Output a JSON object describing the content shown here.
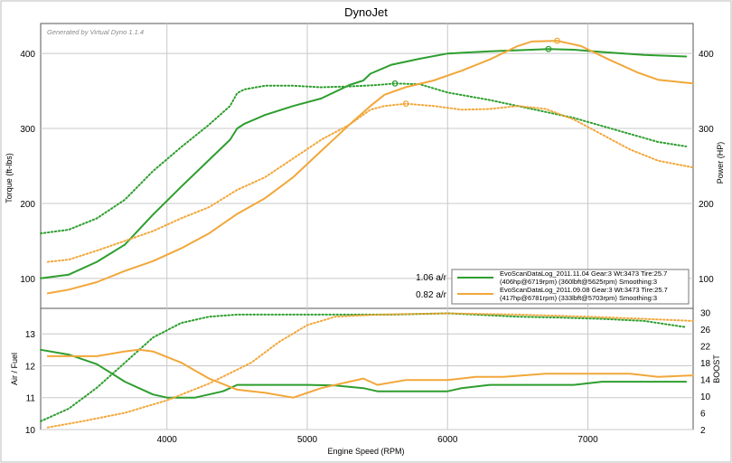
{
  "window": {
    "title": "DynoJet",
    "generated_by": "Generated by Virtual Dyno 1.1.4"
  },
  "colors": {
    "green": "#2e9e2e",
    "orange": "#f2a73a",
    "grid": "#c8c8c8",
    "frame": "#555555"
  },
  "chart_data": [
    {
      "type": "line",
      "title": "DynoJet",
      "xlabel": "Engine Speed (RPM)",
      "ylabel": "Torque (ft-lbs)",
      "y2label": "Power (HP)",
      "xlim": [
        3100,
        7750
      ],
      "ylim": [
        60,
        440
      ],
      "y2lim": [
        60,
        440
      ],
      "yticks": [
        100,
        200,
        300,
        400
      ],
      "y2ticks": [
        100,
        200,
        300,
        400
      ],
      "grid": true,
      "legend": {
        "placement": "bottom-right",
        "afr_labels": [
          "1.06 a/r",
          "0.82 a/r"
        ],
        "entries": [
          {
            "line1": "EvoScanDataLog_2011.11.04 Gear:3 Wt:3473 Tire:25.7",
            "line2": "(406hp@6719rpm) (360lbft@5625rpm) Smoothing:3",
            "color": "#2e9e2e"
          },
          {
            "line1": "EvoScanDataLog_2011.09.08 Gear:3 Wt:3473 Tire:25.7",
            "line2": "(417hp@6781rpm) (333lbft@5703rpm) Smoothing:3",
            "color": "#f2a73a"
          }
        ]
      },
      "series": [
        {
          "name": "EvoScanDataLog_2011.11.04 power",
          "color": "#2e9e2e",
          "style": "solid",
          "axis": "y2",
          "x": [
            3100,
            3300,
            3500,
            3700,
            3900,
            4100,
            4300,
            4450,
            4500,
            4550,
            4700,
            4900,
            5100,
            5300,
            5400,
            5450,
            5600,
            5800,
            6000,
            6300,
            6600,
            6719,
            6900,
            7100,
            7400,
            7700
          ],
          "y": [
            100,
            105,
            122,
            145,
            185,
            222,
            258,
            285,
            300,
            306,
            318,
            330,
            340,
            358,
            364,
            373,
            385,
            393,
            400,
            403,
            405,
            406,
            405,
            402,
            398,
            396
          ],
          "peak": {
            "x": 6719,
            "y": 406
          }
        },
        {
          "name": "EvoScanDataLog_2011.11.04 torque",
          "color": "#2e9e2e",
          "style": "dotted",
          "axis": "y",
          "x": [
            3100,
            3300,
            3500,
            3700,
            3900,
            4100,
            4300,
            4450,
            4500,
            4550,
            4700,
            4900,
            5100,
            5300,
            5500,
            5625,
            5800,
            6000,
            6300,
            6600,
            6900,
            7200,
            7500,
            7700
          ],
          "y": [
            160,
            165,
            180,
            205,
            243,
            275,
            305,
            330,
            347,
            352,
            357,
            357,
            355,
            356,
            358,
            360,
            359,
            348,
            338,
            326,
            314,
            298,
            282,
            276
          ],
          "peak": {
            "x": 5625,
            "y": 360
          }
        },
        {
          "name": "EvoScanDataLog_2011.09.08 power",
          "color": "#f2a73a",
          "style": "solid",
          "axis": "y2",
          "x": [
            3150,
            3300,
            3500,
            3700,
            3900,
            4100,
            4300,
            4500,
            4700,
            4900,
            5100,
            5300,
            5450,
            5550,
            5700,
            5900,
            6100,
            6300,
            6500,
            6600,
            6781,
            6950,
            7150,
            7350,
            7500,
            7750
          ],
          "y": [
            80,
            85,
            95,
            110,
            123,
            140,
            160,
            186,
            207,
            235,
            270,
            305,
            330,
            345,
            355,
            364,
            377,
            392,
            410,
            416,
            417,
            410,
            392,
            375,
            365,
            360
          ],
          "peak": {
            "x": 6781,
            "y": 417
          }
        },
        {
          "name": "EvoScanDataLog_2011.09.08 torque",
          "color": "#f2a73a",
          "style": "dotted",
          "axis": "y",
          "x": [
            3150,
            3300,
            3500,
            3700,
            3900,
            4100,
            4300,
            4500,
            4700,
            4900,
            5100,
            5300,
            5450,
            5550,
            5703,
            5900,
            6100,
            6300,
            6500,
            6700,
            6900,
            7100,
            7300,
            7500,
            7750
          ],
          "y": [
            122,
            125,
            137,
            150,
            163,
            180,
            195,
            218,
            235,
            260,
            285,
            305,
            325,
            330,
            333,
            330,
            325,
            326,
            330,
            326,
            312,
            292,
            272,
            257,
            248
          ],
          "peak": {
            "x": 5703,
            "y": 333
          }
        }
      ]
    },
    {
      "type": "line",
      "xlabel": "Engine Speed (RPM)",
      "ylabel": "Air / Fuel",
      "y2label": "BOOST",
      "xlim": [
        3100,
        7750
      ],
      "ylim": [
        10,
        13.8
      ],
      "y2lim": [
        2,
        31
      ],
      "yticks": [
        10,
        11,
        12,
        13
      ],
      "y2ticks": [
        2,
        6,
        10,
        14,
        18,
        22,
        26,
        30
      ],
      "xticks": [
        4000,
        5000,
        6000,
        7000
      ],
      "grid": true,
      "series": [
        {
          "name": "EvoScanDataLog_2011.11.04 air/fuel",
          "color": "#2e9e2e",
          "style": "solid",
          "axis": "y",
          "x": [
            3100,
            3300,
            3500,
            3700,
            3900,
            4000,
            4200,
            4400,
            4500,
            4700,
            5000,
            5200,
            5400,
            5500,
            5700,
            6000,
            6100,
            6300,
            6600,
            6900,
            7000,
            7100,
            7400,
            7700
          ],
          "y": [
            12.5,
            12.35,
            12.05,
            11.5,
            11.1,
            11.0,
            11.0,
            11.2,
            11.4,
            11.4,
            11.4,
            11.38,
            11.3,
            11.2,
            11.2,
            11.2,
            11.3,
            11.4,
            11.4,
            11.4,
            11.45,
            11.5,
            11.5,
            11.5
          ]
        },
        {
          "name": "EvoScanDataLog_2011.11.04 boost",
          "color": "#2e9e2e",
          "style": "dotted",
          "axis": "y2",
          "x": [
            3100,
            3300,
            3500,
            3700,
            3900,
            4100,
            4300,
            4500,
            4700,
            5000,
            5300,
            5600,
            6000,
            6200,
            6500,
            6800,
            7100,
            7400,
            7700
          ],
          "y": [
            4,
            7,
            12,
            18,
            24,
            27.5,
            29,
            29.5,
            29.5,
            29.5,
            29.5,
            29.5,
            29.8,
            29.5,
            29.0,
            28.8,
            28.5,
            28.0,
            26.5
          ]
        },
        {
          "name": "EvoScanDataLog_2011.09.08 air/fuel",
          "color": "#f2a73a",
          "style": "solid",
          "axis": "y",
          "x": [
            3150,
            3300,
            3500,
            3700,
            3800,
            3900,
            4100,
            4300,
            4500,
            4700,
            4900,
            5100,
            5300,
            5400,
            5500,
            5700,
            6000,
            6200,
            6400,
            6700,
            7000,
            7300,
            7500,
            7750
          ],
          "y": [
            12.3,
            12.3,
            12.3,
            12.45,
            12.5,
            12.45,
            12.1,
            11.6,
            11.25,
            11.15,
            11.0,
            11.3,
            11.5,
            11.6,
            11.4,
            11.55,
            11.55,
            11.65,
            11.65,
            11.75,
            11.75,
            11.75,
            11.65,
            11.7
          ]
        },
        {
          "name": "EvoScanDataLog_2011.09.08 boost",
          "color": "#f2a73a",
          "style": "dotted",
          "axis": "y2",
          "x": [
            3150,
            3400,
            3700,
            4000,
            4300,
            4600,
            4800,
            5000,
            5200,
            5500,
            6000,
            6500,
            7000,
            7400,
            7750
          ],
          "y": [
            2.5,
            4,
            6,
            9,
            13,
            18,
            23,
            27,
            29,
            29.5,
            29.8,
            29.5,
            29,
            28.5,
            28
          ]
        }
      ]
    }
  ]
}
